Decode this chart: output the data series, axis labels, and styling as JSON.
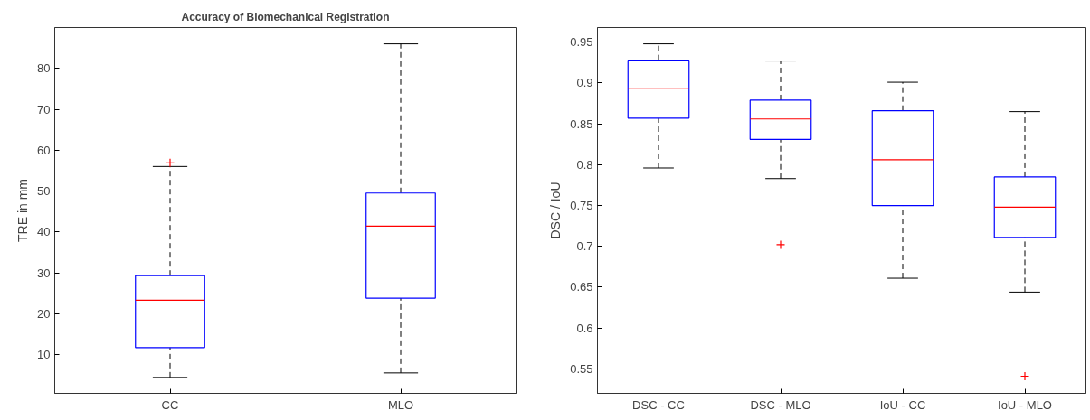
{
  "chart_data": [
    {
      "type": "box",
      "title": "Accuracy of Biomechanical Registration",
      "ylabel": "TRE in mm",
      "categories": [
        "CC",
        "MLO"
      ],
      "ylim": [
        0.5,
        90
      ],
      "yticks": [
        10,
        20,
        30,
        40,
        50,
        60,
        70,
        80
      ],
      "grid": false,
      "series": [
        {
          "color": "#0000ff",
          "boxes": [
            {
              "low": 4.4,
              "q1": 11.7,
              "median": 23.3,
              "q3": 29.3,
              "high": 56.0,
              "outliers": [
                56.9
              ]
            },
            {
              "low": 5.5,
              "q1": 23.8,
              "median": 41.4,
              "q3": 49.5,
              "high": 86.0
            }
          ]
        }
      ]
    },
    {
      "type": "box",
      "ylabel": "DSC / IoU",
      "categories": [
        "DSC - CC",
        "DSC - MLO",
        "IoU - CC",
        "IoU - MLO"
      ],
      "ylim": [
        0.52,
        0.968
      ],
      "yticks": [
        0.55,
        0.6,
        0.65,
        0.7,
        0.75,
        0.8,
        0.85,
        0.9,
        0.95
      ],
      "grid": false,
      "series": [
        {
          "color": "#0000ff",
          "boxes": [
            {
              "low": 0.796,
              "q1": 0.857,
              "median": 0.893,
              "q3": 0.928,
              "high": 0.948
            },
            {
              "low": 0.783,
              "q1": 0.831,
              "median": 0.856,
              "q3": 0.879,
              "high": 0.927,
              "outliers": [
                0.702
              ]
            },
            {
              "low": 0.661,
              "q1": 0.75,
              "median": 0.806,
              "q3": 0.866,
              "high": 0.901
            },
            {
              "low": 0.644,
              "q1": 0.711,
              "median": 0.748,
              "q3": 0.785,
              "high": 0.865,
              "outliers": [
                0.541
              ]
            }
          ]
        }
      ]
    }
  ]
}
